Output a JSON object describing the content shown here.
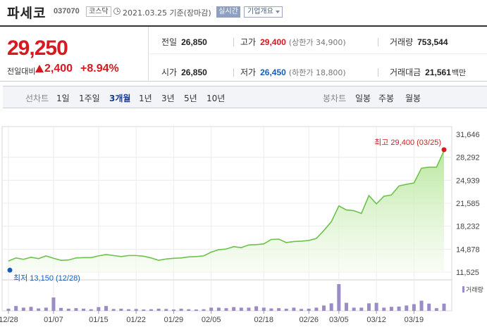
{
  "header": {
    "name": "파세코",
    "code": "037070",
    "market": "코스닥",
    "as_of": "2021.03.25 기준(장마감)",
    "realtime_label": "실시간",
    "overview_label": "기업개요"
  },
  "summary": {
    "price": "29,250",
    "change_label": "전일대비",
    "change_amount": "2,400",
    "change_percent": "+8.94%",
    "prev_close_label": "전일",
    "prev_close": "26,850",
    "open_label": "시가",
    "open": "26,850",
    "high_label": "고가",
    "high": "29,400",
    "upper_limit": "(상한가 34,900)",
    "low_label": "저가",
    "low": "26,450",
    "lower_limit": "(하한가 18,800)",
    "volume_label": "거래량",
    "volume": "753,544",
    "amount_label": "거래대금",
    "amount": "21,561",
    "amount_unit": "백만"
  },
  "tabs": {
    "line_label": "선차트",
    "line": [
      "1일",
      "1주일",
      "3개월",
      "1년",
      "3년",
      "5년",
      "10년"
    ],
    "selected": "3개월",
    "candle_label": "봉차트",
    "candle": [
      "일봉",
      "주봉",
      "월봉"
    ]
  },
  "colors": {
    "up": "#d71920",
    "down": "#1a5bb8",
    "line": "#6cc24a",
    "volume": "#9b8bc7"
  },
  "chart_data": {
    "type": "area",
    "x": [
      "12/28",
      "12/29",
      "12/30",
      "01/04",
      "01/05",
      "01/06",
      "01/07",
      "01/08",
      "01/11",
      "01/12",
      "01/13",
      "01/14",
      "01/15",
      "01/18",
      "01/19",
      "01/20",
      "01/21",
      "01/22",
      "01/25",
      "01/26",
      "01/27",
      "01/28",
      "01/29",
      "02/01",
      "02/02",
      "02/03",
      "02/04",
      "02/05",
      "02/08",
      "02/09",
      "02/10",
      "02/15",
      "02/16",
      "02/17",
      "02/18",
      "02/19",
      "02/22",
      "02/23",
      "02/24",
      "02/25",
      "02/26",
      "03/02",
      "03/03",
      "03/04",
      "03/05",
      "03/08",
      "03/09",
      "03/10",
      "03/11",
      "03/12",
      "03/15",
      "03/16",
      "03/17",
      "03/18",
      "03/19",
      "03/22",
      "03/23",
      "03/24",
      "03/25"
    ],
    "y": [
      13150,
      13600,
      13400,
      13700,
      13500,
      13900,
      13550,
      13250,
      13300,
      13600,
      13650,
      13650,
      13900,
      14100,
      13950,
      13800,
      13950,
      13950,
      13850,
      13600,
      13250,
      13450,
      13550,
      13600,
      13750,
      13800,
      13900,
      14450,
      14800,
      14900,
      15250,
      15100,
      15500,
      15550,
      15650,
      16300,
      16350,
      15850,
      16000,
      16050,
      16150,
      16450,
      17600,
      18900,
      21200,
      20600,
      20500,
      20100,
      22700,
      21500,
      22600,
      22800,
      24100,
      24350,
      24550,
      26700,
      26850,
      26850,
      29250
    ],
    "volume": [
      0.08,
      0.18,
      0.12,
      0.15,
      0.09,
      0.12,
      0.5,
      0.11,
      0.08,
      0.1,
      0.08,
      0.06,
      0.14,
      0.18,
      0.07,
      0.08,
      0.06,
      0.07,
      0.05,
      0.06,
      0.08,
      0.07,
      0.05,
      0.08,
      0.06,
      0.05,
      0.06,
      0.12,
      0.12,
      0.1,
      0.14,
      0.12,
      0.12,
      0.17,
      0.12,
      0.09,
      0.1,
      0.08,
      0.12,
      0.07,
      0.08,
      0.12,
      0.2,
      0.28,
      1.0,
      0.3,
      0.12,
      0.12,
      0.28,
      0.3,
      0.12,
      0.15,
      0.16,
      0.2,
      0.25,
      0.38,
      0.27,
      0.1,
      0.27
    ],
    "x_ticks": [
      "12/28",
      "01/07",
      "01/15",
      "01/22",
      "01/29",
      "02/05",
      "02/18",
      "02/26",
      "03/05",
      "03/12",
      "03/19"
    ],
    "y_ticks": [
      31646,
      28292,
      24939,
      21585,
      18232,
      14878,
      11525
    ],
    "y_tick_labels": [
      "31,646",
      "28,292",
      "24,939",
      "21,585",
      "18,232",
      "14,878",
      "11,525"
    ],
    "ylim": [
      11525,
      31646
    ],
    "max_label": "최고 29,400 (03/25)",
    "max_value": 29400,
    "min_label": "최저 13,150 (12/28)",
    "min_value": 13150,
    "volume_legend": "거래량",
    "grid": true
  }
}
